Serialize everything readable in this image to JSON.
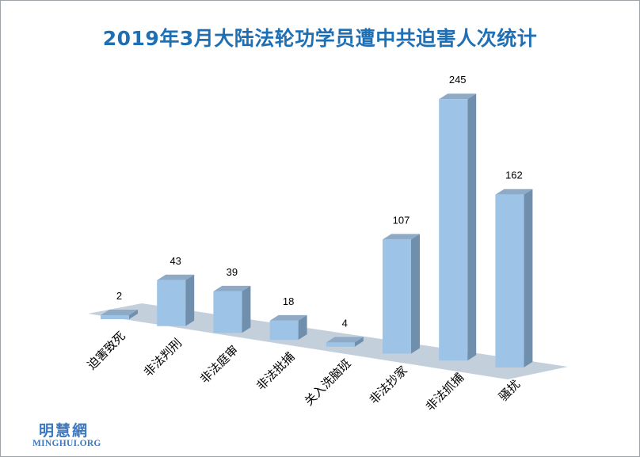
{
  "chart_data": {
    "type": "bar",
    "title": "2019年3月大陆法轮功学员遭中共迫害人次统计",
    "categories": [
      "迫害致死",
      "非法判刑",
      "非法庭审",
      "非法批捕",
      "关入洗脑班",
      "非法抄家",
      "非法抓捕",
      "骚扰"
    ],
    "values": [
      2,
      43,
      39,
      18,
      4,
      107,
      245,
      162
    ],
    "ylim": [
      0,
      245
    ],
    "grid": false,
    "legend": "none",
    "three_d": true
  },
  "colors": {
    "title": "#1f6fb4",
    "bar_front": "#9dc3e6",
    "bar_side": "#6f8fad",
    "bar_top": "#8eaac6",
    "floor": "#c3d0dc",
    "logo": "#3b78bf"
  },
  "logo": {
    "chinese": "明慧網",
    "english": "MINGHUI.ORG"
  }
}
